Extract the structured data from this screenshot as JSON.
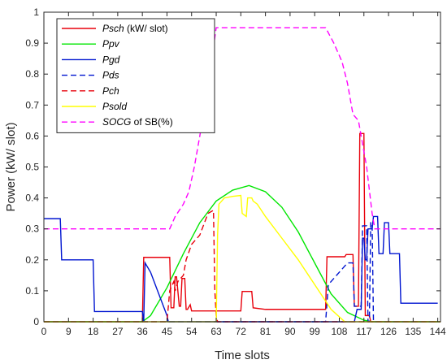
{
  "chart_data": {
    "type": "line",
    "xlabel": "Time slots",
    "ylabel": "Power (kW/ slot)",
    "xlim": [
      0,
      145
    ],
    "ylim": [
      0,
      1
    ],
    "xticks": [
      "0",
      "9",
      "18",
      "27",
      "36",
      "45",
      "54",
      "63",
      "72",
      "81",
      "90",
      "99",
      "108",
      "117",
      "126",
      "135",
      "144"
    ],
    "yticks": [
      "0",
      "0.1",
      "0.2",
      "0.3",
      "0.4",
      "0.5",
      "0.6",
      "0.7",
      "0.8",
      "0.9",
      "1"
    ],
    "grid": false,
    "legend_position": "top-left",
    "series": [
      {
        "name": "Psch",
        "legend_suffix": " (kW/ slot)",
        "color": "#e8000b",
        "dash": "solid",
        "x": [
          0,
          36,
          36.5,
          46,
          46.5,
          47.5,
          48,
          48.5,
          49.5,
          50,
          50.5,
          51.5,
          52,
          52.5,
          53.5,
          54,
          72,
          72.5,
          76,
          76.5,
          81,
          103,
          103.5,
          110,
          110.5,
          113,
          113.5,
          115,
          115.5,
          117,
          117.5,
          119,
          119.5,
          145
        ],
        "y": [
          0,
          0,
          0.208,
          0.208,
          0.045,
          0.045,
          0.145,
          0.145,
          0.05,
          0.05,
          0.14,
          0.14,
          0.04,
          0.04,
          0.055,
          0.035,
          0.035,
          0.098,
          0.098,
          0.045,
          0.04,
          0.04,
          0.21,
          0.21,
          0.217,
          0.217,
          0.05,
          0.05,
          0.608,
          0.608,
          0.02,
          0.02,
          0,
          0
        ]
      },
      {
        "name": "Ppv",
        "legend_suffix": "",
        "color": "#00e600",
        "dash": "solid",
        "x": [
          0,
          36,
          39,
          45,
          51,
          57,
          63,
          69,
          75,
          81,
          87,
          93,
          99,
          105,
          111,
          117,
          120,
          145
        ],
        "y": [
          0,
          0,
          0.02,
          0.11,
          0.22,
          0.32,
          0.39,
          0.425,
          0.44,
          0.42,
          0.37,
          0.29,
          0.19,
          0.09,
          0.03,
          0.005,
          0,
          0
        ],
        "note": ""
      },
      {
        "name": "Pgd",
        "legend_suffix": "",
        "color": "#0015d0",
        "dash": "solid",
        "x": [
          0,
          6,
          6.5,
          18,
          18.5,
          36,
          36.5,
          37,
          39,
          42,
          45,
          45.5,
          103,
          103.5,
          110,
          110.5,
          113,
          113.5,
          114,
          114.5,
          116,
          116.5,
          117,
          117.5,
          118,
          118.5,
          120,
          120.5,
          122,
          122.5,
          124,
          124.5,
          126,
          126.5,
          128,
          128.5,
          130,
          130.5,
          132,
          132.5,
          134,
          134.5,
          144
        ],
        "y": [
          0.333,
          0.333,
          0.2,
          0.2,
          0.033,
          0.033,
          0.0,
          0.19,
          0.16,
          0.09,
          0.02,
          0,
          0,
          0,
          0,
          0,
          0,
          0,
          0.02,
          0.04,
          0.04,
          0.27,
          0.27,
          0.2,
          0.2,
          0.3,
          0.3,
          0.34,
          0.34,
          0.22,
          0.22,
          0.32,
          0.32,
          0.22,
          0.22,
          0.22,
          0.22,
          0.06,
          0.06,
          0.06,
          0.06,
          0.06,
          0.06
        ]
      },
      {
        "name": "Pds",
        "legend_suffix": "",
        "color": "#0015d0",
        "dash": "dashed",
        "x": [
          0,
          103,
          104,
          107,
          110,
          111,
          113,
          113.5,
          116,
          116.5,
          118,
          118.5,
          119,
          119.5,
          120,
          120.5,
          145
        ],
        "y": [
          0,
          0,
          0.12,
          0.15,
          0.18,
          0.19,
          0.19,
          0.05,
          0.05,
          0.31,
          0.31,
          0,
          0,
          0.32,
          0.32,
          0,
          0
        ]
      },
      {
        "name": "Pch",
        "legend_suffix": "",
        "color": "#e8000b",
        "dash": "dashed",
        "x": [
          0,
          45,
          46,
          47.5,
          48,
          49,
          50,
          51,
          52,
          54,
          57,
          60,
          62,
          62.5,
          63,
          63.5,
          145
        ],
        "y": [
          0,
          0,
          0.1,
          0.13,
          0.1,
          0.13,
          0.14,
          0.15,
          0.2,
          0.25,
          0.28,
          0.35,
          0.36,
          0.1,
          0.02,
          0,
          0
        ]
      },
      {
        "name": "Psold",
        "legend_suffix": "",
        "color": "#ffff00",
        "dash": "solid",
        "x": [
          0,
          63,
          63.5,
          64,
          66,
          69,
          72,
          72.5,
          74,
          74.5,
          76,
          76.5,
          78,
          81,
          87,
          93,
          99,
          105,
          110,
          145
        ],
        "y": [
          0,
          0,
          0.28,
          0.38,
          0.4,
          0.405,
          0.408,
          0.35,
          0.34,
          0.4,
          0.4,
          0.39,
          0.38,
          0.34,
          0.27,
          0.2,
          0.12,
          0.04,
          0,
          0
        ]
      },
      {
        "name": "SOCG",
        "legend_suffix": " of SB(%)",
        "color": "#ff00ff",
        "dash": "dashed",
        "x": [
          0,
          46,
          48,
          51,
          53,
          55,
          57,
          60,
          63,
          66,
          103,
          106,
          109,
          111,
          113,
          115,
          116,
          118,
          120,
          121,
          145
        ],
        "y": [
          0.3,
          0.3,
          0.34,
          0.38,
          0.42,
          0.5,
          0.6,
          0.76,
          0.95,
          0.95,
          0.95,
          0.9,
          0.84,
          0.77,
          0.67,
          0.65,
          0.6,
          0.5,
          0.35,
          0.3,
          0.3
        ]
      }
    ]
  }
}
